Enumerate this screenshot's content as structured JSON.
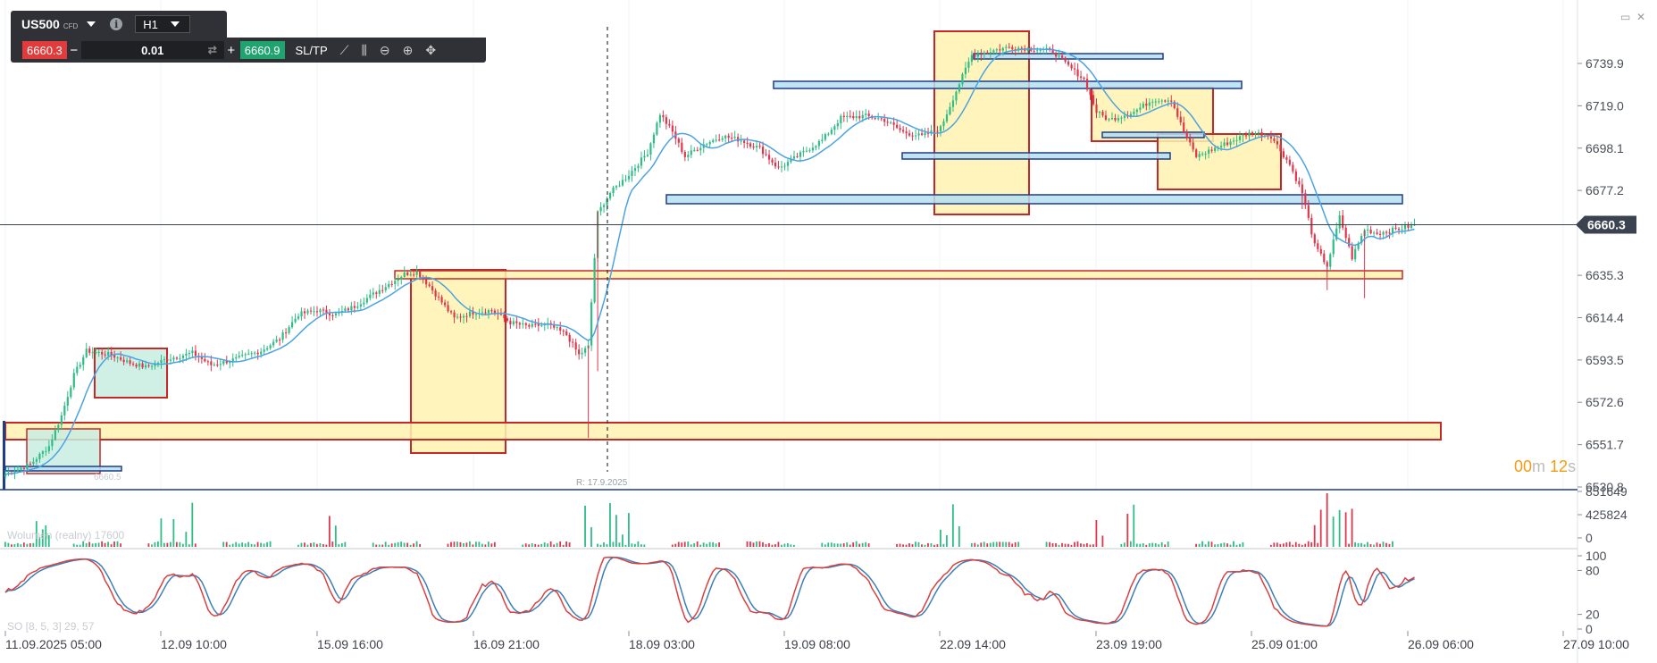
{
  "toolbar": {
    "symbol": "US500",
    "symbol_type": "CFD",
    "info_icon": "i",
    "timeframe": "H1",
    "sell_price": "6660.3",
    "minus": "−",
    "quantity": "0.01",
    "plus": "+",
    "buy_price": "6660.9",
    "sltp_label": "SL/TP",
    "icons": [
      "line-chart-icon",
      "candles-icon",
      "zoom-out-icon",
      "zoom-in-icon",
      "crosshair-icon"
    ]
  },
  "window": {
    "minimize": "▭",
    "close": "✕"
  },
  "timer": {
    "minutes": "00",
    "m_unit": "m",
    "seconds": "12",
    "s_unit": "s"
  },
  "indicator_labels": {
    "volume": "Wolumen (realny) 17600",
    "stochastic": "SO [8, 5, 3] 29, 57",
    "ghost": "6660.5",
    "ref_line": "R: 17.9.2025"
  },
  "colors": {
    "bull": "#2ebd85",
    "bear": "#e0364b",
    "sma": "#4ba3e3",
    "stoch_k": "#d94040",
    "stoch_d": "#3c7fb8",
    "zone_red": "#c62828",
    "zone_blue": "#1f3c88",
    "fill_yellow": "#fff3b0",
    "fill_teal": "#c8ece0",
    "fill_blue": "#b5dff0",
    "last_price": "#3b4250"
  },
  "chart_data": {
    "type": "candlestick",
    "symbol": "US500",
    "timeframe": "H1",
    "last_price": 6660.3,
    "ylim": [
      6530.8,
      6760.0
    ],
    "y_ticks": [
      6739.9,
      6719.0,
      6698.1,
      6677.2,
      6635.3,
      6614.4,
      6593.5,
      6572.6,
      6551.7,
      6530.8
    ],
    "x_labels": [
      "11.09.2025 05:00",
      "12.09 10:00",
      "15.09 16:00",
      "16.09 21:00",
      "18.09 03:00",
      "19.09 08:00",
      "22.09 14:00",
      "23.09 19:00",
      "25.09 01:00",
      "26.09 06:00",
      "27.09 10:00"
    ],
    "close_path": [
      [
        0,
        6537
      ],
      [
        8,
        6542
      ],
      [
        14,
        6551
      ],
      [
        18,
        6566
      ],
      [
        22,
        6586
      ],
      [
        26,
        6598
      ],
      [
        34,
        6596
      ],
      [
        40,
        6592
      ],
      [
        45,
        6590
      ],
      [
        52,
        6594
      ],
      [
        60,
        6597
      ],
      [
        66,
        6591
      ],
      [
        74,
        6594
      ],
      [
        82,
        6598
      ],
      [
        88,
        6604
      ],
      [
        94,
        6616
      ],
      [
        100,
        6618
      ],
      [
        106,
        6616
      ],
      [
        112,
        6620
      ],
      [
        118,
        6626
      ],
      [
        124,
        6632
      ],
      [
        128,
        6636
      ],
      [
        132,
        6637
      ],
      [
        136,
        6630
      ],
      [
        140,
        6622
      ],
      [
        144,
        6614
      ],
      [
        150,
        6617
      ],
      [
        156,
        6618
      ],
      [
        162,
        6612
      ],
      [
        168,
        6610
      ],
      [
        174,
        6611
      ],
      [
        180,
        6606
      ],
      [
        184,
        6596
      ],
      [
        187,
        6600
      ],
      [
        190,
        6666
      ],
      [
        194,
        6676
      ],
      [
        200,
        6685
      ],
      [
        206,
        6696
      ],
      [
        210,
        6715
      ],
      [
        214,
        6706
      ],
      [
        218,
        6694
      ],
      [
        224,
        6700
      ],
      [
        230,
        6704
      ],
      [
        236,
        6702
      ],
      [
        242,
        6698
      ],
      [
        248,
        6688
      ],
      [
        254,
        6694
      ],
      [
        262,
        6702
      ],
      [
        268,
        6713
      ],
      [
        276,
        6714
      ],
      [
        282,
        6712
      ],
      [
        288,
        6706
      ],
      [
        294,
        6704
      ],
      [
        300,
        6708
      ],
      [
        306,
        6730
      ],
      [
        310,
        6744
      ],
      [
        316,
        6746
      ],
      [
        322,
        6748
      ],
      [
        330,
        6747
      ],
      [
        336,
        6746
      ],
      [
        340,
        6740
      ],
      [
        346,
        6732
      ],
      [
        350,
        6716
      ],
      [
        354,
        6712
      ],
      [
        362,
        6716
      ],
      [
        368,
        6722
      ],
      [
        374,
        6722
      ],
      [
        378,
        6706
      ],
      [
        382,
        6694
      ],
      [
        388,
        6698
      ],
      [
        394,
        6702
      ],
      [
        400,
        6706
      ],
      [
        406,
        6704
      ],
      [
        412,
        6690
      ],
      [
        416,
        6676
      ],
      [
        420,
        6650
      ],
      [
        424,
        6640
      ],
      [
        428,
        6664
      ],
      [
        432,
        6644
      ],
      [
        436,
        6658
      ],
      [
        440,
        6656
      ],
      [
        446,
        6658
      ],
      [
        452,
        6660
      ]
    ],
    "volume_max": 851649,
    "volume_ticks": [
      851649,
      425824,
      0
    ],
    "stochastic": {
      "k": 29,
      "d": 57,
      "levels": [
        100,
        80,
        20,
        0
      ]
    }
  }
}
